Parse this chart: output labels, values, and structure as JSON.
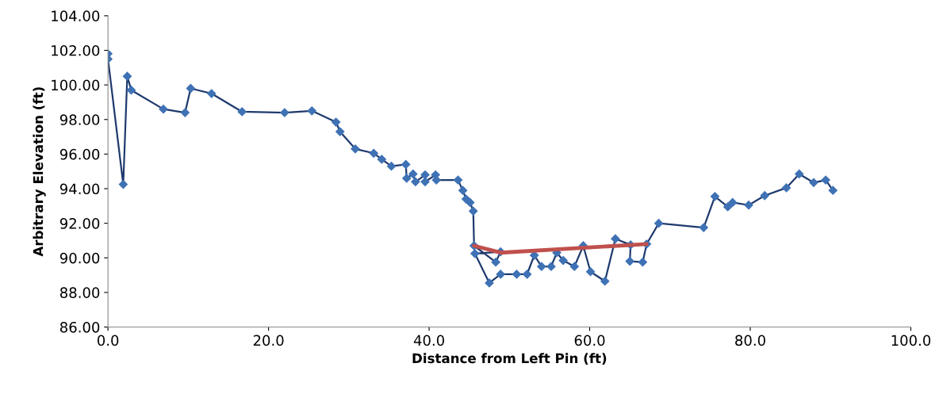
{
  "chart_data": {
    "type": "line",
    "xlabel": "Distance from Left Pin (ft)",
    "ylabel": "Arbitrary Elevation (ft)",
    "xlim": [
      0,
      100
    ],
    "ylim": [
      86,
      104
    ],
    "xticks": [
      {
        "value": 0,
        "label": "0.0"
      },
      {
        "value": 20,
        "label": "20.0"
      },
      {
        "value": 40,
        "label": "40.0"
      },
      {
        "value": 60,
        "label": "60.0"
      },
      {
        "value": 80,
        "label": "80.0"
      },
      {
        "value": 100,
        "label": "100.0"
      }
    ],
    "yticks": [
      {
        "value": 86,
        "label": "86.00"
      },
      {
        "value": 88,
        "label": "88.00"
      },
      {
        "value": 90,
        "label": "90.00"
      },
      {
        "value": 92,
        "label": "92.00"
      },
      {
        "value": 94,
        "label": "94.00"
      },
      {
        "value": 96,
        "label": "96.00"
      },
      {
        "value": 98,
        "label": "98.00"
      },
      {
        "value": 100,
        "label": "100.00"
      },
      {
        "value": 102,
        "label": "102.00"
      },
      {
        "value": 104,
        "label": "104.00"
      }
    ],
    "grid": false,
    "legend": false,
    "series": [
      {
        "color": "#1f3a6e",
        "marker": "diamond",
        "line_style": "solid",
        "x": [
          0,
          0,
          1.9,
          2.4,
          2.9,
          6.9,
          9.6,
          10.3,
          12.9,
          16.7,
          22.0,
          25.4,
          28.4,
          28.9,
          30.8,
          33.1,
          34.1,
          35.3,
          37.1,
          37.2,
          38.0,
          38.3,
          39.5,
          39.5,
          40.8,
          40.9,
          43.6,
          44.2,
          44.6,
          45.1,
          45.5,
          45.6,
          48.3,
          48.9,
          45.7,
          47.5,
          48.9,
          50.9,
          52.2,
          53.1,
          54.0,
          55.2,
          55.9,
          56.7,
          58.1,
          59.2,
          60.1,
          61.9,
          63.2,
          65.1,
          65.0,
          66.6,
          67.1,
          68.6,
          74.2,
          75.6,
          77.2,
          77.8,
          79.8,
          81.8,
          84.5,
          86.1,
          87.9,
          89.4,
          90.3
        ],
        "values": [
          101.8,
          101.5,
          94.25,
          100.5,
          99.7,
          98.6,
          98.4,
          99.8,
          99.5,
          98.45,
          98.4,
          98.5,
          97.85,
          97.3,
          96.3,
          96.05,
          95.7,
          95.3,
          95.4,
          94.6,
          94.85,
          94.4,
          94.8,
          94.4,
          94.8,
          94.5,
          94.5,
          93.9,
          93.4,
          93.2,
          92.7,
          90.7,
          89.75,
          90.35,
          90.25,
          88.55,
          89.05,
          89.05,
          89.05,
          90.15,
          89.5,
          89.5,
          90.3,
          89.85,
          89.5,
          90.7,
          89.2,
          88.65,
          91.1,
          90.75,
          89.8,
          89.75,
          90.8,
          92.0,
          91.75,
          93.55,
          92.95,
          93.2,
          93.05,
          93.6,
          94.05,
          94.85,
          94.35,
          94.5,
          93.9
        ]
      },
      {
        "color": "#c0504d",
        "marker": "none",
        "line_style": "solid",
        "x": [
          45.6,
          48.9,
          67.1
        ],
        "values": [
          90.7,
          90.3,
          90.8
        ]
      }
    ]
  }
}
